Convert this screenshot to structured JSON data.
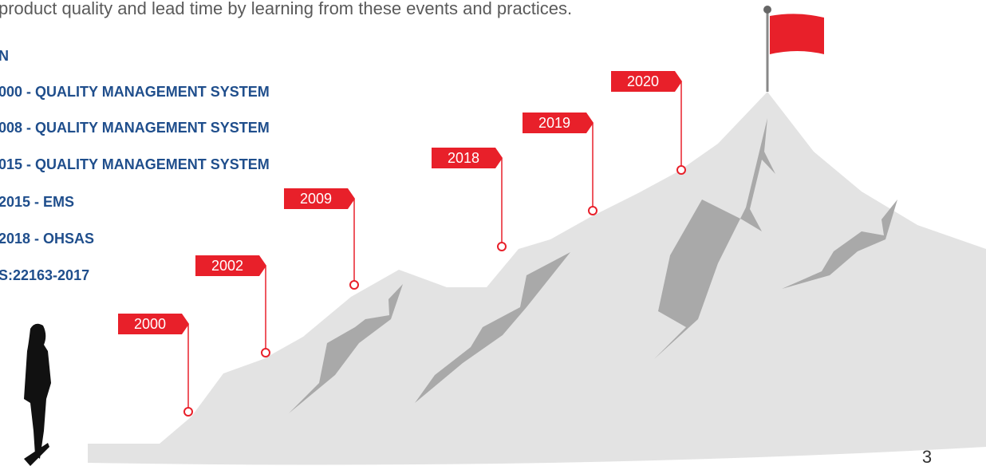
{
  "intro": "product quality and lead time by learning from these events and practices.",
  "list": [
    "N",
    "000 - QUALITY MANAGEMENT SYSTEM",
    "008 - QUALITY MANAGEMENT SYSTEM",
    "015 - QUALITY MANAGEMENT SYSTEM",
    "2015 - EMS",
    "2018 - OHSAS",
    "S:22163-2017"
  ],
  "milestones": [
    "2000",
    "2002",
    "2009",
    "2018",
    "2019",
    "2020"
  ],
  "page_number": "3"
}
